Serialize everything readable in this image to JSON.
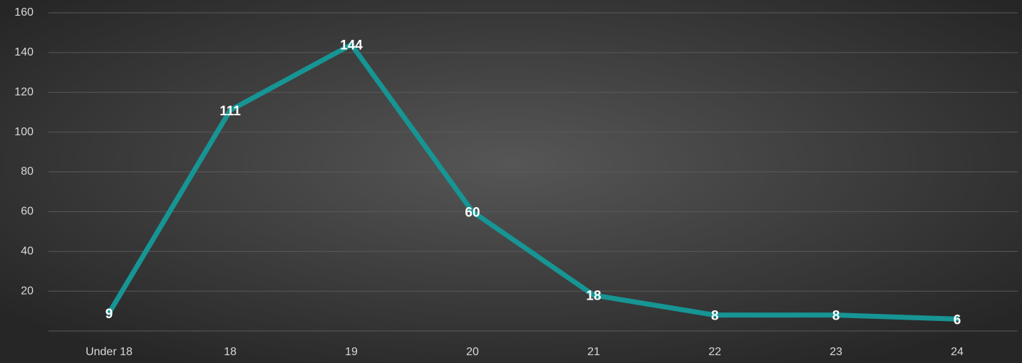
{
  "chart_data": {
    "type": "line",
    "categories": [
      "Under 18",
      "18",
      "19",
      "20",
      "21",
      "22",
      "23",
      "24"
    ],
    "values": [
      9,
      111,
      144,
      60,
      18,
      8,
      8,
      6
    ],
    "color": "#169594",
    "ylim": [
      0,
      160
    ],
    "yticks": [
      20,
      40,
      60,
      80,
      100,
      120,
      140,
      160
    ],
    "grid": true,
    "data_labels": true
  }
}
